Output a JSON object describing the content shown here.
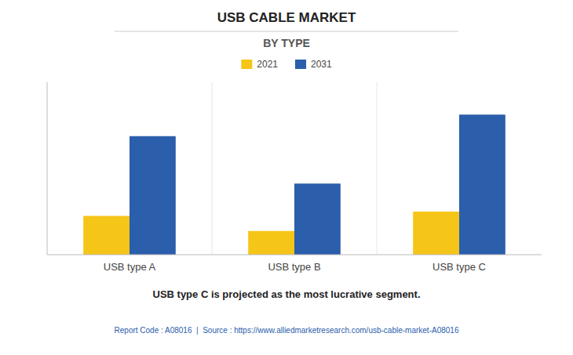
{
  "chart_data": {
    "type": "bar",
    "title": "USB CABLE MARKET",
    "subtitle": "BY TYPE",
    "categories": [
      "USB type A",
      "USB type B",
      "USB type C"
    ],
    "series": [
      {
        "name": "2021",
        "color": "#F5C518",
        "values": [
          1.8,
          1.1,
          2.0
        ]
      },
      {
        "name": "2031",
        "color": "#2B5EAB",
        "values": [
          5.5,
          3.3,
          6.5
        ]
      }
    ],
    "ylim": [
      0,
      8
    ],
    "yticks": [],
    "grid": false,
    "legend": "top",
    "tick_labels": "x",
    "footer": "USB type C is projected as the most lucrative segment.",
    "source": "Report Code : A08016  |  Source : https://www.alliedmarketresearch.com/usb-cable-market-A08016"
  }
}
